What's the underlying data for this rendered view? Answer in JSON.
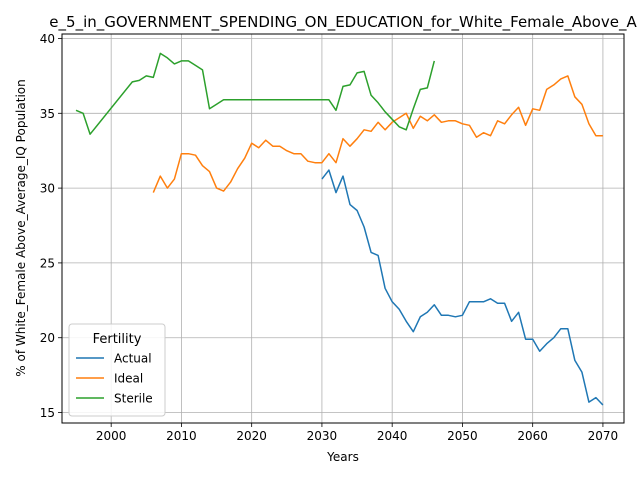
{
  "chart_data": {
    "type": "line",
    "title": "e_5_in_GOVERNMENT_SPENDING_ON_EDUCATION_for_White_Female_Above_A",
    "xlabel": "Years",
    "ylabel": "% of White_Female Above_Average_IQ Population",
    "xlim": [
      1993,
      2073
    ],
    "ylim": [
      14.3,
      40.3
    ],
    "x_ticks": [
      2000,
      2010,
      2020,
      2030,
      2040,
      2050,
      2060,
      2070
    ],
    "y_ticks": [
      15,
      20,
      25,
      30,
      35,
      40
    ],
    "grid": true,
    "legend": {
      "title": "Fertility",
      "position": "lower-left"
    },
    "series": [
      {
        "name": "Actual",
        "color": "#1f77b4",
        "x": [
          2030,
          2031,
          2032,
          2033,
          2034,
          2035,
          2036,
          2037,
          2038,
          2039,
          2040,
          2041,
          2042,
          2043,
          2044,
          2045,
          2046,
          2047,
          2048,
          2049,
          2050,
          2051,
          2052,
          2053,
          2054,
          2055,
          2056,
          2057,
          2058,
          2059,
          2060,
          2061,
          2062,
          2063,
          2064,
          2065,
          2066,
          2067,
          2068,
          2069,
          2070
        ],
        "y": [
          30.6,
          31.2,
          29.7,
          30.8,
          28.9,
          28.5,
          27.4,
          25.7,
          25.5,
          23.3,
          22.4,
          21.9,
          21.1,
          20.4,
          21.4,
          21.7,
          22.2,
          21.5,
          21.5,
          21.4,
          21.5,
          22.4,
          22.4,
          22.4,
          22.6,
          22.3,
          22.3,
          21.1,
          21.7,
          19.9,
          19.9,
          19.1,
          19.6,
          20.0,
          20.6,
          20.6,
          18.5,
          17.7,
          15.7,
          16.0,
          15.5
        ]
      },
      {
        "name": "Ideal",
        "color": "#ff7f0e",
        "x": [
          2006,
          2007,
          2008,
          2009,
          2010,
          2011,
          2012,
          2013,
          2014,
          2015,
          2016,
          2017,
          2018,
          2019,
          2020,
          2021,
          2022,
          2023,
          2024,
          2025,
          2026,
          2027,
          2028,
          2029,
          2030,
          2031,
          2032,
          2033,
          2034,
          2035,
          2036,
          2037,
          2038,
          2039,
          2040,
          2041,
          2042,
          2043,
          2044,
          2045,
          2046,
          2047,
          2048,
          2049,
          2050,
          2051,
          2052,
          2053,
          2054,
          2055,
          2056,
          2057,
          2058,
          2059,
          2060,
          2061,
          2062,
          2063,
          2064,
          2065,
          2066,
          2067,
          2068,
          2069,
          2070
        ],
        "y": [
          29.7,
          30.8,
          30.0,
          30.6,
          32.3,
          32.3,
          32.2,
          31.5,
          31.1,
          30.0,
          29.8,
          30.4,
          31.3,
          32.0,
          33.0,
          32.7,
          33.2,
          32.8,
          32.8,
          32.5,
          32.3,
          32.3,
          31.8,
          31.7,
          31.7,
          32.3,
          31.7,
          33.3,
          32.8,
          33.3,
          33.9,
          33.8,
          34.4,
          33.9,
          34.4,
          34.7,
          35.0,
          34.0,
          34.8,
          34.5,
          34.9,
          34.4,
          34.5,
          34.5,
          34.3,
          34.2,
          33.4,
          33.7,
          33.5,
          34.5,
          34.3,
          34.9,
          35.4,
          34.2,
          35.3,
          35.2,
          36.6,
          36.9,
          37.3,
          37.5,
          36.1,
          35.6,
          34.3,
          33.5,
          33.5
        ]
      },
      {
        "name": "Sterile",
        "color": "#2ca02c",
        "x": [
          1995,
          1996,
          1997,
          2003,
          2004,
          2005,
          2006,
          2007,
          2008,
          2009,
          2010,
          2011,
          2012,
          2013,
          2014,
          2015,
          2016,
          2030,
          2031,
          2032,
          2033,
          2034,
          2035,
          2036,
          2037,
          2038,
          2039,
          2040,
          2041,
          2042,
          2043,
          2044,
          2045,
          2046
        ],
        "y": [
          35.2,
          35.0,
          33.6,
          37.1,
          37.2,
          37.5,
          37.4,
          39.0,
          38.7,
          38.3,
          38.5,
          38.5,
          38.2,
          37.9,
          35.3,
          35.6,
          35.9,
          35.9,
          35.9,
          35.2,
          36.8,
          36.9,
          37.7,
          37.8,
          36.2,
          35.7,
          35.1,
          34.6,
          34.1,
          33.9,
          35.3,
          36.6,
          36.7,
          38.5
        ]
      }
    ]
  }
}
